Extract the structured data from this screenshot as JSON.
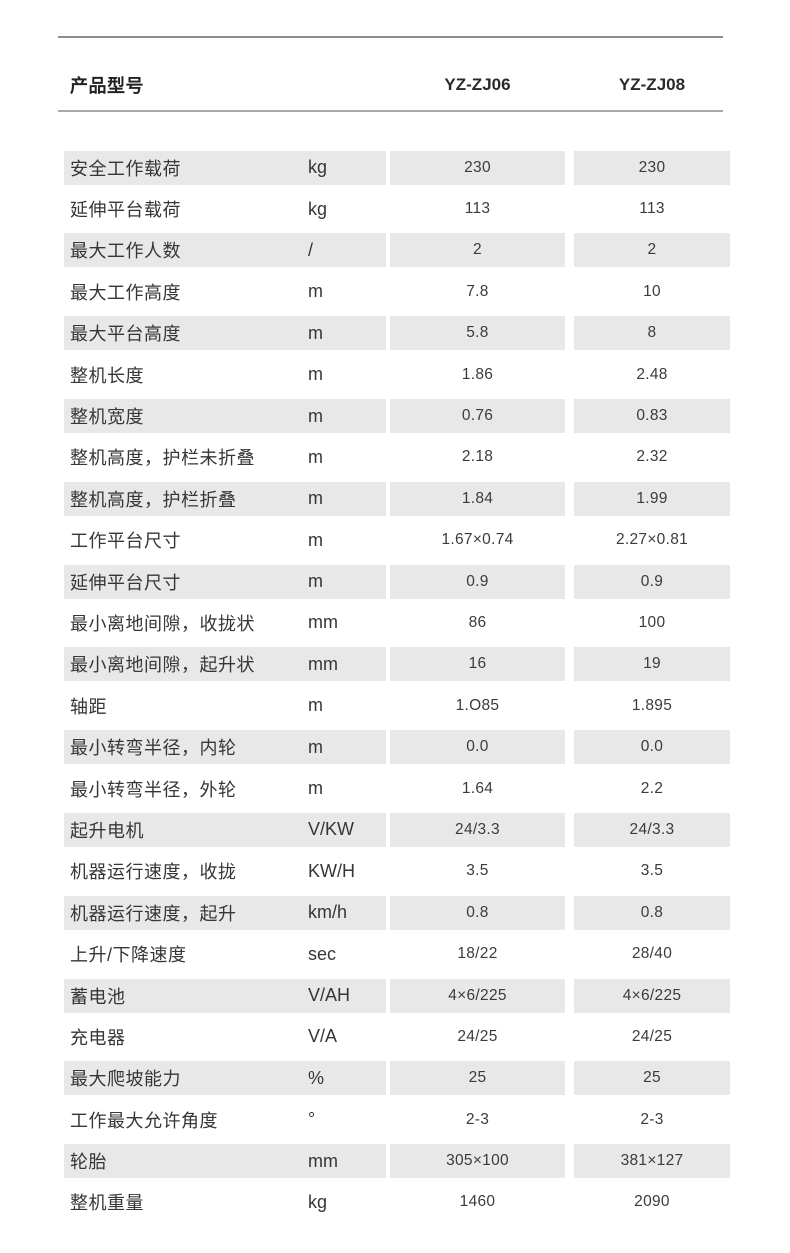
{
  "header": {
    "product_label": "产品型号",
    "models": [
      "YZ-ZJ06",
      "YZ-ZJ08"
    ]
  },
  "rows": [
    {
      "label": "安全工作载荷",
      "unit": "kg",
      "v1": "230",
      "v2": "230"
    },
    {
      "label": "延伸平台载荷",
      "unit": "kg",
      "v1": "113",
      "v2": "113"
    },
    {
      "label": "最大工作人数",
      "unit": "/",
      "v1": "2",
      "v2": "2"
    },
    {
      "label": "最大工作高度",
      "unit": "m",
      "v1": "7.8",
      "v2": "10"
    },
    {
      "label": "最大平台高度",
      "unit": "m",
      "v1": "5.8",
      "v2": "8"
    },
    {
      "label": "整机长度",
      "unit": "m",
      "v1": "1.86",
      "v2": "2.48"
    },
    {
      "label": "整机宽度",
      "unit": "m",
      "v1": "0.76",
      "v2": "0.83"
    },
    {
      "label": "整机高度，护栏未折叠",
      "unit": "m",
      "v1": "2.18",
      "v2": "2.32"
    },
    {
      "label": "整机高度，护栏折叠",
      "unit": "m",
      "v1": "1.84",
      "v2": "1.99"
    },
    {
      "label": "工作平台尺寸",
      "unit": "m",
      "v1": "1.67×0.74",
      "v2": "2.27×0.81"
    },
    {
      "label": "延伸平台尺寸",
      "unit": "m",
      "v1": "0.9",
      "v2": "0.9"
    },
    {
      "label": "最小离地间隙，收拢状",
      "unit": "mm",
      "v1": "86",
      "v2": "100"
    },
    {
      "label": "最小离地间隙，起升状",
      "unit": "mm",
      "v1": "16",
      "v2": "19"
    },
    {
      "label": "轴距",
      "unit": "m",
      "v1": "1.O85",
      "v2": "1.895"
    },
    {
      "label": "最小转弯半径，内轮",
      "unit": "m",
      "v1": "0.0",
      "v2": "0.0"
    },
    {
      "label": "最小转弯半径，外轮",
      "unit": "m",
      "v1": "1.64",
      "v2": "2.2"
    },
    {
      "label": "起升电机",
      "unit": "V/KW",
      "v1": "24/3.3",
      "v2": "24/3.3"
    },
    {
      "label": "机器运行速度，收拢",
      "unit": "KW/H",
      "v1": "3.5",
      "v2": "3.5"
    },
    {
      "label": "机器运行速度，起升",
      "unit": "km/h",
      "v1": "0.8",
      "v2": "0.8"
    },
    {
      "label": "上升/下降速度",
      "unit": "sec",
      "v1": "18/22",
      "v2": "28/40"
    },
    {
      "label": "蓄电池",
      "unit": "V/AH",
      "v1": "4×6/225",
      "v2": "4×6/225"
    },
    {
      "label": "充电器",
      "unit": "V/A",
      "v1": "24/25",
      "v2": "24/25"
    },
    {
      "label": "最大爬坡能力",
      "unit": "%",
      "v1": "25",
      "v2": "25"
    },
    {
      "label": "工作最大允许角度",
      "unit": "°",
      "v1": "2-3",
      "v2": "2-3"
    },
    {
      "label": "轮胎",
      "unit": "mm",
      "v1": "305×100",
      "v2": "381×127"
    },
    {
      "label": "整机重量",
      "unit": "kg",
      "v1": "1460",
      "v2": "2090"
    }
  ],
  "colors": {
    "row_stripe": "#e8e8e8",
    "label_text": "#363636",
    "value_text": "#3b3b3b",
    "header_text": "#222222",
    "divider_top": "#8d8d8d",
    "divider_header": "#a9a9a9"
  }
}
